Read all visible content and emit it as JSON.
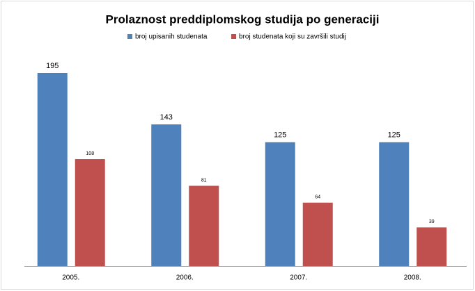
{
  "chart_data": {
    "type": "bar",
    "title": "Prolaznost preddiplomskog studija po generaciji",
    "categories": [
      "2005.",
      "2006.",
      "2007.",
      "2008."
    ],
    "series": [
      {
        "name": "broj upisanih studenata",
        "color": "#4f81bd",
        "values": [
          195,
          143,
          125,
          125
        ]
      },
      {
        "name": "broj studenata koji su završili studij",
        "color": "#c0504d",
        "values": [
          108,
          81,
          64,
          39
        ]
      }
    ],
    "legend": "top"
  }
}
